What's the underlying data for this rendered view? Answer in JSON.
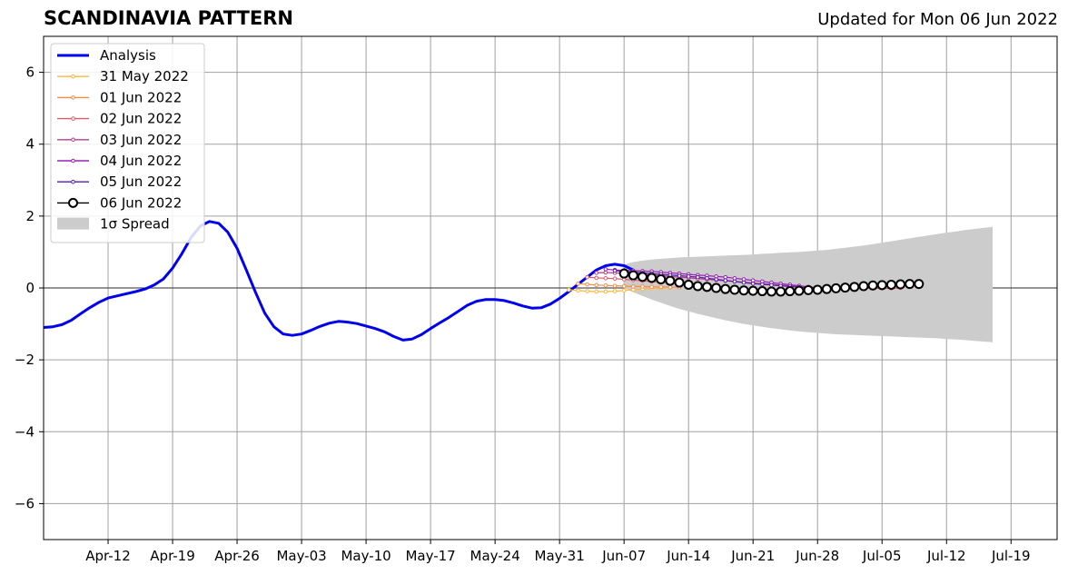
{
  "header": {
    "title": "SCANDINAVIA PATTERN",
    "subtitle": "Updated for Mon 06 Jun 2022"
  },
  "chart_data": {
    "type": "line",
    "title": "SCANDINAVIA PATTERN",
    "subtitle": "Updated for Mon 06 Jun 2022",
    "xlabel": "",
    "ylabel": "",
    "x_range": [
      "2022-04-05",
      "2022-07-24"
    ],
    "ylim": [
      -7,
      7
    ],
    "grid": true,
    "legend_position": "top-left",
    "x_ticks": [
      {
        "date": "2022-04-12",
        "label": "Apr-12"
      },
      {
        "date": "2022-04-19",
        "label": "Apr-19"
      },
      {
        "date": "2022-04-26",
        "label": "Apr-26"
      },
      {
        "date": "2022-05-03",
        "label": "May-03"
      },
      {
        "date": "2022-05-10",
        "label": "May-10"
      },
      {
        "date": "2022-05-17",
        "label": "May-17"
      },
      {
        "date": "2022-05-24",
        "label": "May-24"
      },
      {
        "date": "2022-05-31",
        "label": "May-31"
      },
      {
        "date": "2022-06-07",
        "label": "Jun-07"
      },
      {
        "date": "2022-06-14",
        "label": "Jun-14"
      },
      {
        "date": "2022-06-21",
        "label": "Jun-21"
      },
      {
        "date": "2022-06-28",
        "label": "Jun-28"
      },
      {
        "date": "2022-07-05",
        "label": "Jul-05"
      },
      {
        "date": "2022-07-12",
        "label": "Jul-12"
      },
      {
        "date": "2022-07-19",
        "label": "Jul-19"
      }
    ],
    "y_ticks": [
      {
        "value": 6,
        "label": "6"
      },
      {
        "value": 4,
        "label": "4"
      },
      {
        "value": 2,
        "label": "2"
      },
      {
        "value": 0,
        "label": "0"
      },
      {
        "value": -2,
        "label": "−2"
      },
      {
        "value": -4,
        "label": "−4"
      },
      {
        "value": -6,
        "label": "−6"
      }
    ],
    "analysis": {
      "name": "Analysis",
      "color": "#0000ee",
      "start_date": "2022-04-05",
      "values": [
        -1.1,
        -1.08,
        -1.02,
        -0.9,
        -0.72,
        -0.55,
        -0.4,
        -0.28,
        -0.22,
        -0.16,
        -0.1,
        -0.03,
        0.08,
        0.25,
        0.55,
        0.95,
        1.4,
        1.72,
        1.85,
        1.8,
        1.55,
        1.1,
        0.5,
        -0.12,
        -0.7,
        -1.08,
        -1.28,
        -1.32,
        -1.28,
        -1.18,
        -1.07,
        -0.98,
        -0.93,
        -0.95,
        -0.99,
        -1.06,
        -1.13,
        -1.22,
        -1.35,
        -1.45,
        -1.42,
        -1.3,
        -1.13,
        -0.97,
        -0.82,
        -0.65,
        -0.48,
        -0.37,
        -0.32,
        -0.32,
        -0.35,
        -0.42,
        -0.5,
        -0.56,
        -0.55,
        -0.45,
        -0.29,
        -0.1,
        0.1,
        0.3,
        0.5,
        0.62,
        0.66,
        0.62,
        0.5
      ]
    },
    "spread": {
      "name": "1σ Spread",
      "color": "#cccccc",
      "start_date": "2022-06-07",
      "upper": [
        0.65,
        0.72,
        0.76,
        0.79,
        0.81,
        0.83,
        0.85,
        0.86,
        0.87,
        0.88,
        0.89,
        0.9,
        0.91,
        0.92,
        0.93,
        0.95,
        0.96,
        0.98,
        0.99,
        1.0,
        1.02,
        1.04,
        1.06,
        1.09,
        1.12,
        1.15,
        1.18,
        1.22,
        1.26,
        1.3,
        1.34,
        1.38,
        1.42,
        1.46,
        1.5,
        1.54,
        1.57,
        1.61,
        1.64,
        1.67,
        1.7
      ],
      "lower": [
        0.0,
        -0.12,
        -0.22,
        -0.32,
        -0.41,
        -0.5,
        -0.58,
        -0.65,
        -0.72,
        -0.78,
        -0.84,
        -0.9,
        -0.95,
        -1.0,
        -1.04,
        -1.08,
        -1.12,
        -1.15,
        -1.18,
        -1.21,
        -1.23,
        -1.25,
        -1.27,
        -1.29,
        -1.3,
        -1.31,
        -1.32,
        -1.33,
        -1.34,
        -1.35,
        -1.36,
        -1.37,
        -1.38,
        -1.39,
        -1.4,
        -1.42,
        -1.43,
        -1.45,
        -1.47,
        -1.49,
        -1.51
      ]
    },
    "forecasts": [
      {
        "name": "31 May 2022",
        "color": "#ffb63a",
        "start_date": "2022-06-01",
        "values": [
          -0.05,
          -0.07,
          -0.09,
          -0.1,
          -0.1,
          -0.09,
          -0.07,
          -0.05,
          -0.03,
          -0.01,
          0.0,
          0.01
        ]
      },
      {
        "name": "01 Jun 2022",
        "color": "#f48c48",
        "start_date": "2022-06-02",
        "values": [
          0.12,
          0.1,
          0.08,
          0.07,
          0.06,
          0.05,
          0.04,
          0.04,
          0.03,
          0.03,
          0.02,
          0.02
        ]
      },
      {
        "name": "02 Jun 2022",
        "color": "#e05c6c",
        "start_date": "2022-06-03",
        "values": [
          0.3,
          0.28,
          0.27,
          0.26,
          0.24,
          0.22,
          0.2,
          0.18,
          0.16,
          0.14,
          0.12,
          0.1,
          0.08,
          0.06,
          0.04,
          0.02,
          0.0,
          -0.02,
          -0.03,
          -0.04,
          -0.04,
          -0.04,
          -0.04,
          -0.03,
          -0.03,
          -0.03,
          -0.02,
          -0.02,
          -0.02,
          -0.01,
          -0.01,
          -0.01,
          -0.01,
          -0.01,
          0.0
        ]
      },
      {
        "name": "03 Jun 2022",
        "color": "#b83c90",
        "start_date": "2022-06-04",
        "values": [
          0.42,
          0.43,
          0.42,
          0.41,
          0.4,
          0.38,
          0.36,
          0.34,
          0.32,
          0.3,
          0.28,
          0.26,
          0.24,
          0.22,
          0.2,
          0.18,
          0.16,
          0.14,
          0.12,
          0.1,
          0.08,
          0.06,
          0.04,
          0.02,
          0.0,
          -0.01,
          -0.02
        ]
      },
      {
        "name": "04 Jun 2022",
        "color": "#9a20b8",
        "start_date": "2022-06-05",
        "values": [
          0.52,
          0.5,
          0.49,
          0.48,
          0.47,
          0.46,
          0.44,
          0.42,
          0.4,
          0.38,
          0.36,
          0.34,
          0.32,
          0.3,
          0.27,
          0.24,
          0.21,
          0.18,
          0.15,
          0.12,
          0.09,
          0.06,
          0.03,
          0.01,
          -0.01,
          -0.02,
          -0.03
        ]
      },
      {
        "name": "05 Jun 2022",
        "color": "#5a1aa8",
        "start_date": "2022-06-06",
        "values": [
          0.48,
          0.46,
          0.44,
          0.42,
          0.4,
          0.38,
          0.36,
          0.34,
          0.32,
          0.3,
          0.27,
          0.24,
          0.21,
          0.18,
          0.15,
          0.12,
          0.1,
          0.08,
          0.06,
          0.04,
          0.02,
          0.01,
          0.0,
          -0.01,
          -0.02
        ]
      },
      {
        "name": "06 Jun 2022",
        "color": "#000000",
        "start_date": "2022-06-07",
        "values": [
          0.4,
          0.35,
          0.31,
          0.28,
          0.24,
          0.2,
          0.15,
          0.09,
          0.05,
          0.03,
          0.0,
          -0.03,
          -0.05,
          -0.07,
          -0.08,
          -0.09,
          -0.1,
          -0.1,
          -0.09,
          -0.08,
          -0.06,
          -0.05,
          -0.03,
          -0.01,
          0.01,
          0.03,
          0.05,
          0.07,
          0.08,
          0.09,
          0.1,
          0.11,
          0.11
        ]
      }
    ],
    "legend": [
      "Analysis",
      "31 May 2022",
      "01 Jun 2022",
      "02 Jun 2022",
      "03 Jun 2022",
      "04 Jun 2022",
      "05 Jun 2022",
      "06 Jun 2022",
      "1σ Spread"
    ]
  }
}
